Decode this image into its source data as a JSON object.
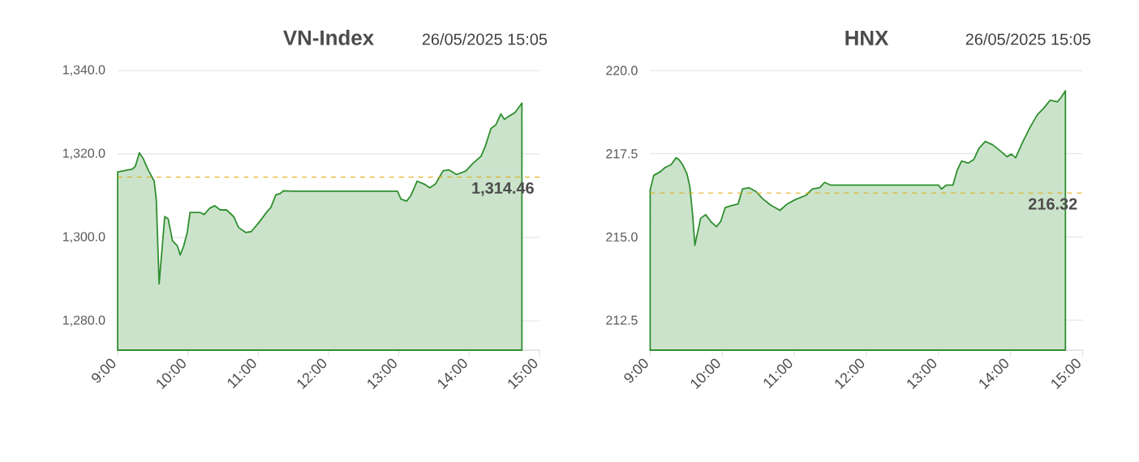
{
  "chart_data": [
    {
      "type": "area",
      "title": "VN-Index",
      "subtitle": "26/05/2025 15:05",
      "color": "#2f8f2f",
      "grid": "y",
      "x": [
        9.0,
        9.21,
        9.25,
        9.31,
        9.36,
        9.44,
        9.52,
        9.55,
        9.59,
        9.67,
        9.72,
        9.78,
        9.85,
        9.89,
        9.94,
        9.99,
        10.03,
        10.17,
        10.23,
        10.31,
        10.38,
        10.46,
        10.55,
        10.65,
        10.72,
        10.82,
        10.9,
        11.02,
        11.13,
        11.18,
        11.25,
        11.31,
        11.36,
        11.48,
        12.98,
        13.03,
        13.11,
        13.17,
        13.26,
        13.36,
        13.44,
        13.52,
        13.63,
        13.71,
        13.82,
        13.95,
        14.05,
        14.17,
        14.23,
        14.31,
        14.38,
        14.45,
        14.5,
        14.58,
        14.65,
        14.75
      ],
      "values": [
        1315.7,
        1316.4,
        1317,
        1320.3,
        1319,
        1316,
        1313.5,
        1309,
        1288.9,
        1305,
        1304.4,
        1299.2,
        1298,
        1295.8,
        1298,
        1301.2,
        1306,
        1306,
        1305.5,
        1307,
        1307.6,
        1306.6,
        1306.6,
        1305,
        1302.4,
        1301.2,
        1301.4,
        1303.8,
        1306.3,
        1307.2,
        1310.2,
        1310.5,
        1311.2,
        1311.1,
        1311.1,
        1309.2,
        1308.7,
        1310,
        1313.5,
        1312.8,
        1311.9,
        1312.8,
        1316,
        1316.2,
        1315.1,
        1315.9,
        1317.7,
        1319.5,
        1321.9,
        1326.1,
        1327,
        1329.6,
        1328.3,
        1329.2,
        1329.9,
        1332.2
      ],
      "xlim": [
        9,
        15
      ],
      "xticks": [
        {
          "value": 9,
          "label": "9:00"
        },
        {
          "value": 10,
          "label": "10:00"
        },
        {
          "value": 11,
          "label": "11:00"
        },
        {
          "value": 12,
          "label": "12:00"
        },
        {
          "value": 13,
          "label": "13:00"
        },
        {
          "value": 14,
          "label": "14:00"
        },
        {
          "value": 15,
          "label": "15:00"
        }
      ],
      "ylim": [
        1273,
        1340
      ],
      "yticks": [
        {
          "value": 1280,
          "label": "1,280.0"
        },
        {
          "value": 1300,
          "label": "1,300.0"
        },
        {
          "value": 1320,
          "label": "1,320.0"
        },
        {
          "value": 1340,
          "label": "1,340.0"
        }
      ],
      "ref_lines": [
        {
          "axis": "y",
          "value": 1314.46,
          "label": "1,314.46",
          "color": "#e0a800",
          "line_style": "dashed"
        }
      ]
    },
    {
      "type": "area",
      "title": "HNX",
      "subtitle": "26/05/2025 15:05",
      "color": "#2f8f2f",
      "grid": "y",
      "x": [
        9.0,
        9.05,
        9.14,
        9.21,
        9.29,
        9.36,
        9.4,
        9.45,
        9.51,
        9.55,
        9.59,
        9.62,
        9.7,
        9.77,
        9.85,
        9.92,
        9.98,
        10.04,
        10.11,
        10.22,
        10.28,
        10.37,
        10.47,
        10.56,
        10.67,
        10.8,
        10.9,
        11.01,
        11.16,
        11.25,
        11.35,
        11.42,
        11.5,
        13.0,
        13.04,
        13.11,
        13.2,
        13.26,
        13.32,
        13.41,
        13.49,
        13.56,
        13.65,
        13.75,
        13.86,
        13.95,
        14.01,
        14.07,
        14.16,
        14.27,
        14.37,
        14.46,
        14.55,
        14.65,
        14.7,
        14.76
      ],
      "values": [
        216.41,
        216.85,
        216.96,
        217.09,
        217.17,
        217.38,
        217.32,
        217.17,
        216.9,
        216.52,
        215.64,
        214.75,
        215.56,
        215.67,
        215.44,
        215.31,
        215.47,
        215.88,
        215.93,
        215.99,
        216.44,
        216.48,
        216.36,
        216.15,
        215.96,
        215.8,
        215.99,
        216.12,
        216.25,
        216.44,
        216.48,
        216.64,
        216.56,
        216.56,
        216.44,
        216.56,
        216.56,
        217.01,
        217.28,
        217.22,
        217.33,
        217.66,
        217.87,
        217.77,
        217.58,
        217.41,
        217.49,
        217.38,
        217.82,
        218.3,
        218.67,
        218.87,
        219.11,
        219.06,
        219.19,
        219.39
      ],
      "xlim": [
        9,
        15
      ],
      "xticks": [
        {
          "value": 9,
          "label": "9:00"
        },
        {
          "value": 10,
          "label": "10:00"
        },
        {
          "value": 11,
          "label": "11:00"
        },
        {
          "value": 12,
          "label": "12:00"
        },
        {
          "value": 13,
          "label": "13:00"
        },
        {
          "value": 14,
          "label": "14:00"
        },
        {
          "value": 15,
          "label": "15:00"
        }
      ],
      "ylim": [
        211.6,
        220
      ],
      "yticks": [
        {
          "value": 212.5,
          "label": "212.5"
        },
        {
          "value": 215,
          "label": "215.0"
        },
        {
          "value": 217.5,
          "label": "217.5"
        },
        {
          "value": 220,
          "label": "220.0"
        }
      ],
      "ref_lines": [
        {
          "axis": "y",
          "value": 216.32,
          "label": "216.32",
          "color": "#e0a800",
          "line_style": "dashed"
        }
      ]
    }
  ]
}
